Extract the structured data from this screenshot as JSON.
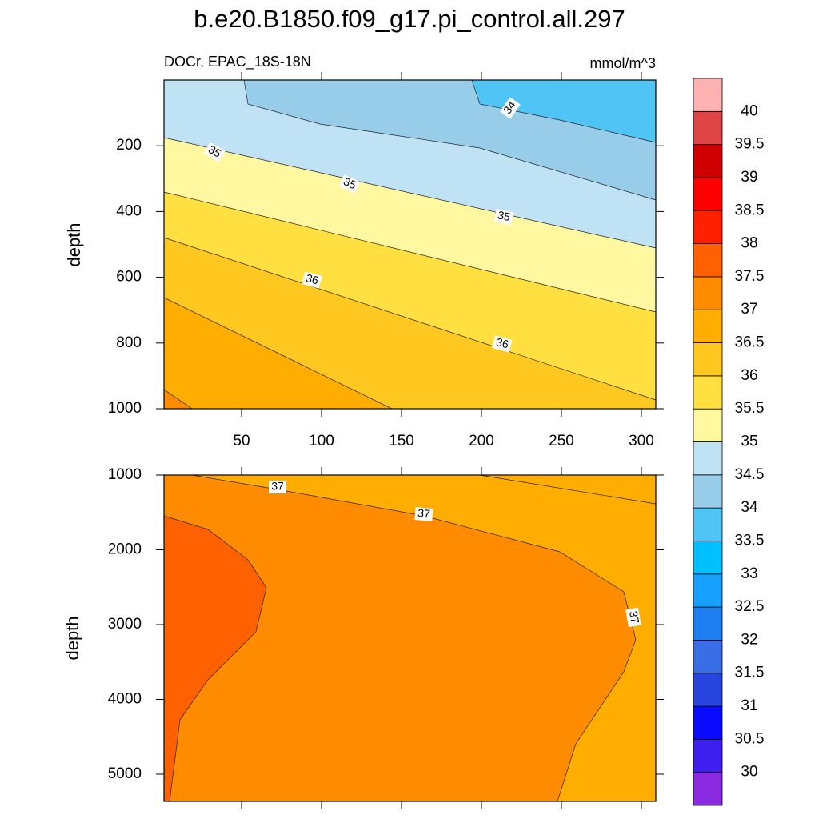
{
  "chart_data": {
    "type": "contour",
    "title": "b.e20.B1850.f09_g17.pi_control.all.297",
    "panels": [
      {
        "subtitle_left": "DOCr, EPAC_18S-18N",
        "subtitle_right": "mmol/m^3",
        "ylabel": "depth",
        "xlim": [
          1.5,
          309
        ],
        "xticks": [
          50,
          100,
          150,
          200,
          250,
          300
        ],
        "ylim": [
          0,
          1000
        ],
        "yticks": [
          200,
          400,
          600,
          800,
          1000
        ],
        "contour_labels": [
          34,
          35,
          35,
          35,
          36,
          36
        ]
      },
      {
        "ylabel": "depth",
        "xlim": [
          1.5,
          309
        ],
        "ylim": [
          1000,
          5364
        ],
        "yticks": [
          1000,
          2000,
          3000,
          4000,
          5000
        ],
        "contour_labels": [
          37,
          37,
          37
        ]
      }
    ],
    "colorbar": {
      "levels": [
        30,
        30.5,
        31,
        31.5,
        32,
        32.5,
        33,
        33.5,
        34,
        34.5,
        35,
        35.5,
        36,
        36.5,
        37,
        37.5,
        38,
        38.5,
        39,
        39.5,
        40
      ],
      "colors": [
        "#8a2be2",
        "#4020f0",
        "#0a0aff",
        "#2845e0",
        "#3a6ee6",
        "#1e80f0",
        "#18a0ff",
        "#00c0ff",
        "#50c5f5",
        "#98cdea",
        "#bfe3f5",
        "#fff8a0",
        "#ffe040",
        "#ffc820",
        "#ffad00",
        "#ff8c00",
        "#ff6000",
        "#ff2000",
        "#ff0000",
        "#d00000",
        "#e04545",
        "#ffb2b2"
      ]
    }
  }
}
